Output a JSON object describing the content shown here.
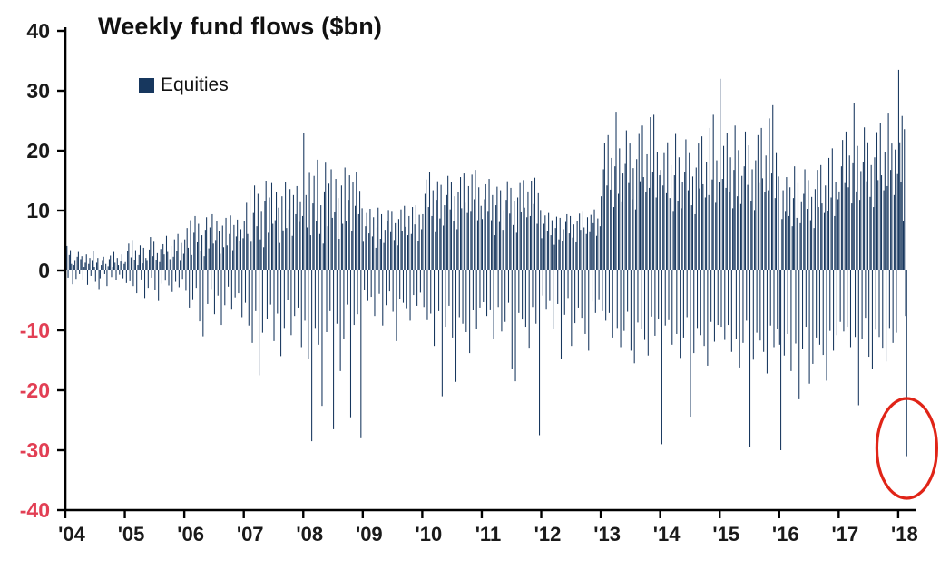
{
  "chart_data": {
    "type": "bar",
    "title": "Weekly fund flows ($bn)",
    "frequency": "weekly",
    "unit": "$bn",
    "legend": [
      {
        "label": "Equities",
        "color": "#17375e"
      }
    ],
    "ylim": [
      -40,
      40
    ],
    "y_ticks": [
      40,
      30,
      20,
      10,
      0,
      -10,
      -20,
      -30,
      -40
    ],
    "x_tick_labels": [
      "'04",
      "'05",
      "'06",
      "'07",
      "'08",
      "'09",
      "'10",
      "'11",
      "'12",
      "'13",
      "'14",
      "'15",
      "'16",
      "'17",
      "'18"
    ],
    "grid": false,
    "legend_position": "top-left",
    "colors": {
      "bar": "#17375e",
      "axis": "#000000",
      "tick_label_positive": "#1a1a1a",
      "tick_label_negative": "#e23f54",
      "annotation_circle": "#e02417",
      "background": "#ffffff"
    },
    "annotation": {
      "shape": "ellipse",
      "description": "red circle highlighting record weekly equity outflow",
      "target_value": -31.0,
      "target_period": "early 2018"
    },
    "series": [
      {
        "name": "Equities",
        "values_by_year": {
          "2004": [
            3.2,
            4.1,
            -1.2,
            2.6,
            3.4,
            1.1,
            -2.3,
            0.9,
            1.6,
            -1.4,
            2.3,
            3.1,
            -0.6,
            1.9,
            2.4,
            -1.6,
            0.6,
            1.3,
            2.7,
            -2.4,
            1.1,
            2.1,
            -0.9,
            1.6,
            3.3,
            0.6,
            -1.9,
            1.3,
            2.1,
            -3.1,
            -1.3,
            0.9,
            1.6,
            2.3,
            -0.6,
            1.1,
            -2.6,
            0.7,
            1.9,
            2.5,
            -1.1,
            0.6,
            3.1,
            1.3,
            -1.6,
            2.1,
            0.9,
            -0.7,
            1.5,
            2.7,
            -1.3,
            1.1
          ],
          "2005": [
            1.4,
            -2.1,
            3.2,
            4.5,
            -1.8,
            2.2,
            5.1,
            -2.6,
            1.7,
            3.4,
            -3.8,
            0.9,
            2.6,
            4.2,
            -1.5,
            1.2,
            3.8,
            -4.6,
            2.1,
            1.6,
            -2.9,
            3.5,
            5.6,
            -1.2,
            2.4,
            4.8,
            -3.2,
            1.8,
            2.9,
            -5.1,
            1.4,
            3.6,
            -2.2,
            4.4,
            2.7,
            -1.7,
            5.8,
            3.1,
            -2.5,
            1.9,
            4.1,
            -3.6,
            2.3,
            5.2,
            -1.9,
            3.3,
            6.1,
            -2.8,
            1.6,
            4.6,
            -1.4,
            2.8
          ],
          "2006": [
            5.2,
            -3.4,
            7.1,
            3.8,
            -6.2,
            8.4,
            2.6,
            -4.8,
            6.3,
            9.1,
            -2.9,
            4.7,
            7.8,
            -8.5,
            3.2,
            5.9,
            -11.0,
            2.4,
            6.8,
            8.9,
            -5.6,
            3.7,
            7.2,
            -3.1,
            9.4,
            4.5,
            -7.3,
            5.1,
            8.2,
            -4.2,
            6.6,
            2.8,
            -9.1,
            7.5,
            3.9,
            -5.8,
            8.8,
            4.2,
            -2.7,
            6.1,
            9.2,
            -6.4,
            3.4,
            7.6,
            -4.5,
            5.7,
            8.5,
            -3.8,
            4.9,
            6.9,
            -7.8,
            5.4
          ],
          "2007": [
            8.2,
            -5.4,
            11.3,
            6.1,
            -9.2,
            13.5,
            4.8,
            -12.1,
            9.6,
            14.2,
            -6.8,
            7.4,
            12.8,
            -17.5,
            5.2,
            9.8,
            -10.4,
            3.9,
            11.6,
            15.0,
            -8.1,
            6.3,
            12.2,
            -5.7,
            14.6,
            7.8,
            -11.8,
            8.4,
            13.1,
            -7.2,
            10.5,
            4.6,
            -14.3,
            12.4,
            6.7,
            -9.6,
            14.8,
            7.1,
            -4.9,
            10.2,
            13.6,
            -10.8,
            5.8,
            12.6,
            -7.6,
            9.4,
            14.1,
            -6.2,
            8.1,
            11.4,
            -12.8,
            9.1
          ],
          "2008": [
            23.0,
            -8.4,
            12.6,
            7.2,
            -14.8,
            16.3,
            5.9,
            -28.5,
            11.2,
            15.8,
            -9.6,
            8.3,
            18.5,
            -12.4,
            6.1,
            10.9,
            -22.6,
            4.5,
            13.2,
            18.0,
            -10.3,
            7.4,
            14.5,
            -6.8,
            16.9,
            8.8,
            -26.5,
            9.7,
            15.3,
            -8.9,
            12.1,
            5.3,
            -16.8,
            14.2,
            7.8,
            -11.4,
            17.2,
            8.2,
            -5.7,
            11.8,
            15.9,
            -24.5,
            6.6,
            14.8,
            -9.1,
            10.8,
            16.4,
            -7.3,
            9.4,
            13.3,
            -28.0,
            10.4
          ],
          "2009": [
            4.8,
            -3.2,
            7.4,
            9.6,
            -5.1,
            6.2,
            10.3,
            -4.4,
            5.7,
            8.9,
            -7.6,
            3.8,
            7.2,
            10.5,
            -3.9,
            5.3,
            9.4,
            -9.2,
            4.6,
            6.8,
            -5.8,
            8.3,
            10.1,
            -3.5,
            6.4,
            9.8,
            -6.9,
            5.1,
            7.9,
            -11.8,
            4.2,
            8.6,
            -4.7,
            10.2,
            6.6,
            -5.4,
            10.8,
            7.3,
            -6.3,
            5.9,
            9.1,
            -8.4,
            6.1,
            10.6,
            -4.1,
            7.7,
            10.9,
            -5.9,
            4.9,
            9.3,
            -3.7,
            6.9
          ],
          "2010": [
            9.4,
            -6.1,
            12.8,
            15.2,
            -8.3,
            10.6,
            16.5,
            -7.2,
            9.1,
            13.4,
            -12.6,
            6.4,
            11.8,
            14.9,
            -6.8,
            8.7,
            14.3,
            -21.0,
            7.5,
            10.9,
            -9.4,
            12.6,
            15.8,
            -5.9,
            10.2,
            14.7,
            -11.2,
            8.2,
            12.4,
            -18.6,
            6.9,
            13.1,
            -7.8,
            15.6,
            10.4,
            -8.9,
            16.2,
            11.3,
            -10.3,
            9.6,
            14.1,
            -13.8,
            9.8,
            16.0,
            -6.6,
            11.9,
            16.8,
            -9.7,
            8.4,
            13.9,
            -6.2,
            10.8
          ],
          "2011": [
            8.6,
            -5.3,
            11.9,
            14.4,
            -7.6,
            9.8,
            15.3,
            -6.5,
            8.4,
            12.6,
            -11.4,
            5.9,
            10.9,
            14.0,
            -6.1,
            8.1,
            13.4,
            -10.2,
            6.8,
            10.1,
            -8.6,
            11.8,
            14.9,
            -5.4,
            9.5,
            13.8,
            -16.4,
            7.6,
            11.6,
            -18.5,
            6.3,
            12.2,
            -7.1,
            14.6,
            9.7,
            -8.2,
            15.1,
            10.5,
            -9.4,
            8.9,
            13.2,
            -12.9,
            9.1,
            15.0,
            -6.1,
            11.1,
            15.5,
            -8.9,
            7.8,
            12.9,
            -27.5,
            10.1
          ],
          "2012": [
            5.4,
            -4.2,
            7.8,
            9.2,
            -6.4,
            6.6,
            9.6,
            -5.1,
            5.9,
            8.4,
            -9.8,
            4.3,
            7.1,
            9.0,
            -5.6,
            5.2,
            8.8,
            -14.8,
            4.9,
            6.9,
            -7.4,
            8.1,
            9.4,
            -4.6,
            6.2,
            9.1,
            -12.6,
            5.5,
            7.7,
            -8.8,
            4.7,
            8.3,
            -6.2,
            9.5,
            6.8,
            -7.9,
            9.8,
            7.2,
            -10.6,
            6.1,
            8.9,
            -13.4,
            6.4,
            9.3,
            -5.2,
            7.9,
            10.2,
            -7.1,
            5.8,
            8.7,
            -4.8,
            7.4
          ],
          "2013": [
            12.4,
            -6.8,
            16.9,
            21.3,
            -8.4,
            14.2,
            22.6,
            -7.1,
            13.5,
            18.8,
            -11.2,
            10.6,
            17.4,
            26.5,
            -9.6,
            12.8,
            20.4,
            -12.8,
            11.4,
            16.2,
            -10.1,
            17.8,
            23.4,
            -6.9,
            14.6,
            21.2,
            -13.4,
            11.9,
            17.1,
            -15.5,
            10.2,
            18.6,
            -8.7,
            22.8,
            14.9,
            -9.8,
            24.2,
            15.6,
            -11.6,
            13.1,
            19.4,
            -14.2,
            13.8,
            25.6,
            -7.7,
            16.4,
            26.0,
            -10.9,
            12.2,
            19.8,
            -8.1,
            15.9
          ],
          "2014": [
            16.8,
            -29.0,
            14.2,
            19.6,
            -9.2,
            12.9,
            21.4,
            -8.3,
            12.1,
            17.6,
            -12.4,
            9.8,
            15.9,
            22.8,
            -10.6,
            11.6,
            18.9,
            -14.6,
            10.4,
            14.8,
            -11.2,
            16.4,
            21.9,
            -7.8,
            13.4,
            19.6,
            -24.4,
            10.9,
            15.7,
            -13.8,
            9.4,
            17.2,
            -9.6,
            21.2,
            13.7,
            -10.8,
            22.4,
            14.4,
            -12.6,
            12.2,
            18.1,
            -15.9,
            12.6,
            23.8,
            -8.6,
            15.2,
            26.0,
            -11.9,
            11.3,
            18.4,
            -9.1,
            14.7
          ],
          "2015": [
            32.0,
            -9.4,
            15.3,
            20.8,
            -11.6,
            13.8,
            22.9,
            -9.1,
            13.1,
            18.9,
            -13.6,
            10.4,
            16.8,
            24.2,
            -11.4,
            12.4,
            20.1,
            -16.2,
            11.1,
            15.8,
            -12.1,
            17.4,
            23.2,
            -8.4,
            14.3,
            20.9,
            -29.5,
            11.6,
            16.9,
            -14.9,
            10.1,
            18.4,
            -10.4,
            22.6,
            14.6,
            -11.7,
            23.8,
            15.4,
            -13.6,
            13.1,
            19.2,
            -17.2,
            13.4,
            25.4,
            -9.2,
            16.2,
            27.6,
            -12.8,
            12.1,
            19.6,
            -9.8,
            15.7
          ],
          "2016": [
            -12.4,
            -30.0,
            8.6,
            13.4,
            -14.2,
            9.8,
            15.6,
            -10.6,
            9.1,
            13.9,
            -16.8,
            7.4,
            12.1,
            17.4,
            -12.2,
            8.8,
            14.6,
            -21.5,
            7.9,
            11.4,
            -13.1,
            12.8,
            16.9,
            -9.4,
            10.3,
            15.1,
            -18.9,
            8.4,
            12.3,
            -15.6,
            7.1,
            13.6,
            -11.2,
            16.8,
            10.6,
            -12.4,
            17.6,
            11.2,
            -14.1,
            9.6,
            14.2,
            -18.4,
            9.9,
            18.8,
            -10.1,
            12.2,
            20.4,
            -13.4,
            9.1,
            14.8,
            -10.8,
            11.9
          ],
          "2017": [
            13.2,
            -8.6,
            17.4,
            21.8,
            -10.2,
            14.6,
            23.2,
            -9.4,
            13.9,
            19.2,
            -12.8,
            11.2,
            17.9,
            28.0,
            -11.1,
            13.2,
            20.8,
            -22.5,
            11.8,
            16.6,
            -11.4,
            18.1,
            23.9,
            -7.9,
            14.9,
            21.4,
            -14.4,
            12.3,
            17.6,
            -16.4,
            10.6,
            18.9,
            -9.9,
            23.1,
            15.1,
            -11.1,
            24.6,
            15.9,
            -12.9,
            13.4,
            19.8,
            -15.2,
            14.1,
            26.2,
            -9.6,
            16.8,
            21.2,
            -12.1,
            12.6,
            20.2,
            -10.4,
            16.1
          ],
          "2018": [
            33.5,
            21.4,
            14.8,
            25.8,
            8.2,
            23.6,
            -7.6,
            -31.0
          ]
        }
      }
    ]
  }
}
